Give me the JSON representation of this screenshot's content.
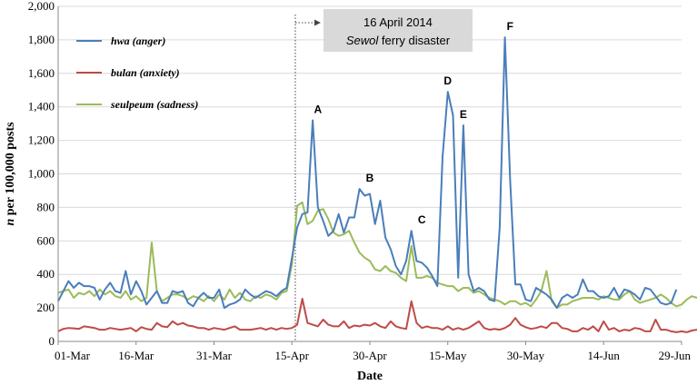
{
  "chart_data": {
    "type": "line",
    "xlabel": "Date",
    "ylabel_italic": "n",
    "ylabel_rest": " per 100,000 posts",
    "ylim": [
      0,
      2000
    ],
    "y_ticks": [
      0,
      200,
      400,
      600,
      800,
      1000,
      1200,
      1400,
      1600,
      1800,
      2000
    ],
    "y_tick_labels": [
      "0",
      "200",
      "400",
      "600",
      "800",
      "1,000",
      "1,200",
      "1,400",
      "1,600",
      "1,800",
      "2,000"
    ],
    "x_start": "2014-03-01",
    "x_ticks": [
      "2014-03-01",
      "2014-03-16",
      "2014-03-31",
      "2014-04-15",
      "2014-04-30",
      "2014-05-15",
      "2014-05-30",
      "2014-06-14",
      "2014-06-29"
    ],
    "x_tick_labels": [
      "01-Mar",
      "16-Mar",
      "31-Mar",
      "15-Apr",
      "30-Apr",
      "15-May",
      "30-May",
      "14-Jun",
      "29-Jun"
    ],
    "grid": "horizontal",
    "event": {
      "date": "2014-04-16",
      "line1": "16 April 2014",
      "line2_italic": "Sewol",
      "line2_rest": " ferry disaster"
    },
    "annotations": [
      {
        "label": "A",
        "date": "2014-04-20",
        "value": 1320
      },
      {
        "label": "B",
        "date": "2014-04-30",
        "value": 910
      },
      {
        "label": "C",
        "date": "2014-05-10",
        "value": 660
      },
      {
        "label": "D",
        "date": "2014-05-15",
        "value": 1490
      },
      {
        "label": "E",
        "date": "2014-05-18",
        "value": 1290
      },
      {
        "label": "F",
        "date": "2014-05-27",
        "value": 1815
      }
    ],
    "series": [
      {
        "name": "hwa",
        "desc": "(anger)",
        "color": "#4a7ebb",
        "values": [
          240,
          300,
          360,
          320,
          350,
          330,
          330,
          320,
          250,
          310,
          350,
          300,
          290,
          420,
          280,
          360,
          300,
          220,
          260,
          300,
          230,
          230,
          300,
          290,
          300,
          230,
          210,
          260,
          290,
          260,
          260,
          310,
          200,
          220,
          230,
          250,
          310,
          280,
          260,
          280,
          300,
          290,
          270,
          300,
          320,
          500,
          680,
          760,
          770,
          1320,
          800,
          720,
          630,
          660,
          760,
          650,
          740,
          740,
          910,
          870,
          880,
          700,
          840,
          620,
          550,
          450,
          400,
          480,
          660,
          480,
          470,
          440,
          390,
          330,
          1100,
          1490,
          1350,
          380,
          1290,
          400,
          300,
          320,
          300,
          250,
          240,
          680,
          1815,
          960,
          340,
          340,
          250,
          240,
          320,
          300,
          280,
          250,
          200,
          260,
          280,
          260,
          280,
          370,
          300,
          300,
          270,
          260,
          270,
          320,
          260,
          310,
          300,
          280,
          250,
          320,
          310,
          270,
          230,
          220,
          230,
          310
        ]
      },
      {
        "name": "bulan",
        "desc": "(anxiety)",
        "color": "#be4b48",
        "values": [
          60,
          75,
          80,
          78,
          75,
          90,
          85,
          80,
          70,
          70,
          80,
          75,
          70,
          75,
          80,
          60,
          85,
          75,
          70,
          110,
          90,
          85,
          120,
          100,
          110,
          95,
          90,
          80,
          80,
          70,
          80,
          75,
          70,
          80,
          90,
          70,
          70,
          70,
          75,
          80,
          70,
          80,
          70,
          80,
          75,
          80,
          100,
          255,
          110,
          100,
          90,
          130,
          100,
          90,
          90,
          120,
          80,
          95,
          90,
          100,
          95,
          110,
          90,
          80,
          120,
          90,
          80,
          75,
          240,
          110,
          80,
          90,
          80,
          80,
          70,
          90,
          70,
          80,
          70,
          80,
          100,
          120,
          80,
          70,
          75,
          70,
          80,
          100,
          140,
          100,
          85,
          75,
          80,
          90,
          80,
          110,
          110,
          80,
          75,
          60,
          60,
          80,
          70,
          90,
          60,
          120,
          70,
          80,
          60,
          70,
          65,
          80,
          75,
          60,
          60,
          130,
          70,
          70,
          60,
          55,
          60,
          55,
          65,
          70
        ]
      },
      {
        "name": "seulpeum",
        "desc": "(sadness)",
        "color": "#9bbb59",
        "values": [
          290,
          300,
          310,
          260,
          290,
          280,
          300,
          270,
          310,
          280,
          300,
          270,
          260,
          300,
          250,
          270,
          240,
          260,
          590,
          300,
          240,
          260,
          280,
          280,
          270,
          250,
          270,
          260,
          240,
          270,
          240,
          280,
          250,
          310,
          260,
          290,
          250,
          240,
          270,
          260,
          280,
          270,
          250,
          290,
          300,
          460,
          810,
          830,
          700,
          720,
          780,
          790,
          730,
          650,
          630,
          640,
          660,
          590,
          530,
          500,
          480,
          430,
          420,
          450,
          420,
          410,
          380,
          360,
          570,
          380,
          380,
          390,
          380,
          350,
          340,
          330,
          330,
          300,
          320,
          320,
          290,
          300,
          280,
          260,
          250,
          240,
          220,
          240,
          240,
          220,
          230,
          210,
          250,
          300,
          420,
          240,
          200,
          220,
          220,
          240,
          250,
          260,
          260,
          260,
          250,
          270,
          260,
          250,
          250,
          280,
          300,
          250,
          230,
          240,
          250,
          260,
          280,
          260,
          230,
          210,
          220,
          250,
          270,
          260
        ]
      }
    ]
  }
}
